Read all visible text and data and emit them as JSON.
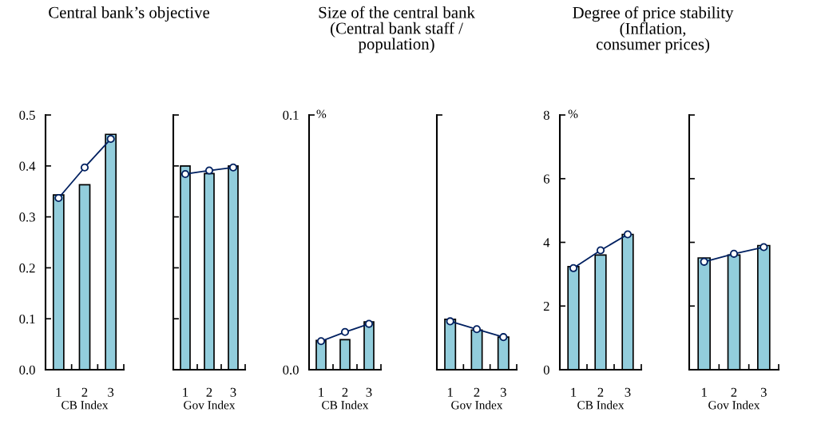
{
  "chart_data": [
    {
      "type": "bar",
      "title": "Central bank’s objective",
      "categories": [
        "1",
        "2",
        "3"
      ],
      "xlabel": "CB Index",
      "ylim": [
        0,
        0.5
      ],
      "yticks": [
        "0.0",
        0.1,
        0.2,
        0.3,
        0.4,
        0.5
      ],
      "grid": false,
      "legend": false,
      "marker": "circle",
      "series": [
        {
          "color": "#92cddc",
          "values": [
            0.343,
            0.363,
            0.462
          ]
        },
        {
          "type": "line",
          "color": "#002060",
          "values": [
            0.337,
            0.397,
            0.453
          ]
        }
      ]
    },
    {
      "type": "bar",
      "categories": [
        "1",
        "2",
        "3"
      ],
      "xlabel": "Gov Index",
      "ylim": [
        0,
        0.5
      ],
      "yticks": [
        {
          "value": 0,
          "label": null
        },
        {
          "value": 0.1,
          "label": null
        },
        {
          "value": 0.2,
          "label": null
        },
        {
          "value": 0.3,
          "label": null
        },
        {
          "value": 0.4,
          "label": null
        },
        {
          "value": 0.5,
          "label": null
        }
      ],
      "tick_labels": "x",
      "grid": false,
      "legend": false,
      "marker": "circle",
      "series": [
        {
          "color": "#92cddc",
          "values": [
            0.4,
            0.385,
            0.4
          ]
        },
        {
          "type": "line",
          "color": "#002060",
          "values": [
            0.384,
            0.391,
            0.397
          ]
        }
      ]
    },
    {
      "type": "bar",
      "title": "Size of the central bank\n(Central bank staff /\npopulation)",
      "categories": [
        "1",
        "2",
        "3"
      ],
      "xlabel": "CB Index",
      "ylabel": "%",
      "ylim": [
        0,
        0.1
      ],
      "yticks": [
        {
          "value": 0,
          "label": "0.0"
        },
        0.1
      ],
      "grid": false,
      "legend": false,
      "marker": "circle",
      "series": [
        {
          "color": "#92cddc",
          "values": [
            0.0115,
            0.0118,
            0.0188
          ]
        },
        {
          "type": "line",
          "color": "#002060",
          "values": [
            0.0112,
            0.0148,
            0.018
          ]
        }
      ]
    },
    {
      "type": "bar",
      "categories": [
        "1",
        "2",
        "3"
      ],
      "xlabel": "Gov Index",
      "ylim": [
        0,
        0.1
      ],
      "yticks": [
        {
          "value": 0,
          "label": null
        },
        {
          "value": 0.1,
          "label": null
        }
      ],
      "tick_labels": "x",
      "grid": false,
      "legend": false,
      "marker": "circle",
      "series": [
        {
          "color": "#92cddc",
          "values": [
            0.0198,
            0.0156,
            0.0128
          ]
        },
        {
          "type": "line",
          "color": "#002060",
          "values": [
            0.019,
            0.0159,
            0.0128
          ]
        }
      ]
    },
    {
      "type": "bar",
      "title": "Degree of price stability\n(Inflation,\nconsumer prices)",
      "categories": [
        "1",
        "2",
        "3"
      ],
      "xlabel": "CB Index",
      "ylabel": "%",
      "ylim": [
        0,
        8
      ],
      "yticks": [
        0,
        2,
        4,
        6,
        8
      ],
      "grid": false,
      "legend": false,
      "marker": "circle",
      "series": [
        {
          "color": "#92cddc",
          "values": [
            3.24,
            3.6,
            4.25
          ]
        },
        {
          "type": "line",
          "color": "#002060",
          "values": [
            3.19,
            3.75,
            4.25
          ]
        }
      ]
    },
    {
      "type": "bar",
      "categories": [
        "1",
        "2",
        "3"
      ],
      "xlabel": "Gov Index",
      "ylim": [
        0,
        8
      ],
      "yticks": [
        {
          "value": 0,
          "label": null
        },
        {
          "value": 2,
          "label": null
        },
        {
          "value": 4,
          "label": null
        },
        {
          "value": 6,
          "label": null
        },
        {
          "value": 8,
          "label": null
        }
      ],
      "tick_labels": "x",
      "grid": false,
      "legend": false,
      "marker": "circle",
      "series": [
        {
          "color": "#92cddc",
          "values": [
            3.51,
            3.6,
            3.9
          ]
        },
        {
          "type": "line",
          "color": "#002060",
          "values": [
            3.39,
            3.64,
            3.85
          ]
        }
      ]
    }
  ]
}
